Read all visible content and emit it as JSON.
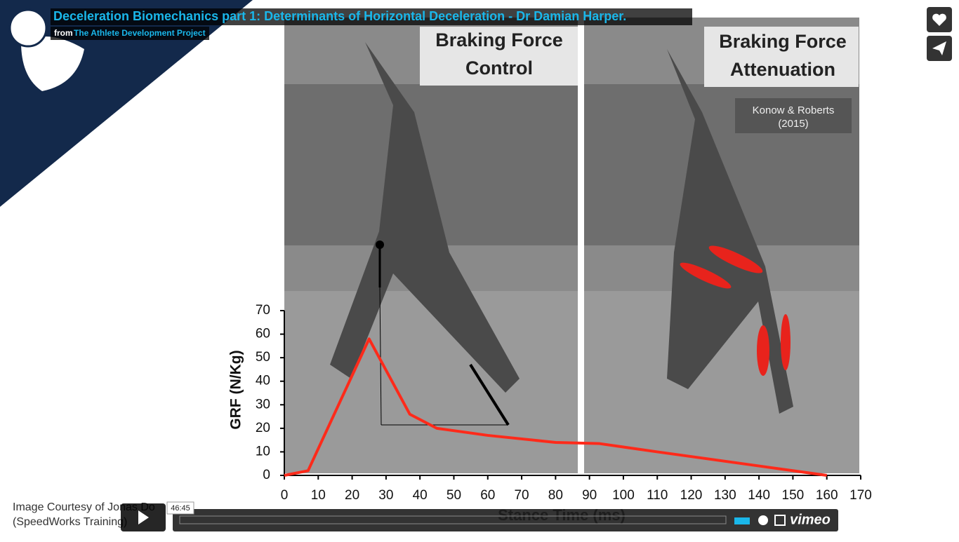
{
  "video": {
    "title": "Deceleration Biomechanics part 1: Determinants of Horizontal Deceleration - Dr Damian Harper.",
    "byline_prefix": "from",
    "channel": "The Athlete Development Project",
    "time": "46:45",
    "brand": "vimeo",
    "frame": {
      "panels": [
        [
          "Braking Force",
          "Control"
        ],
        [
          "Braking Force",
          "Attenuation"
        ]
      ],
      "citation": [
        "Konow & Roberts",
        "(2015)"
      ],
      "credit": [
        "Image Courtesy of Jonas Do",
        "(SpeedWorks Training)"
      ]
    },
    "chart": {
      "type": "line",
      "x": [
        0,
        7,
        25,
        37,
        45,
        60,
        80,
        93,
        110,
        140,
        160
      ],
      "values": [
        0,
        2,
        58,
        26,
        20,
        17,
        14,
        13.5,
        10,
        4,
        0
      ],
      "color": "#ff2a1a",
      "xlim": [
        0,
        170
      ],
      "ylim": [
        0,
        70
      ],
      "xticks": [
        0,
        10,
        20,
        30,
        40,
        50,
        60,
        70,
        80,
        90,
        100,
        110,
        120,
        130,
        140,
        150,
        160,
        170
      ],
      "yticks": [
        0,
        10,
        20,
        30,
        40,
        50,
        60,
        70
      ],
      "xlabel": "Stance Time (ms)",
      "ylabel": "GRF (N/Kg)"
    }
  }
}
